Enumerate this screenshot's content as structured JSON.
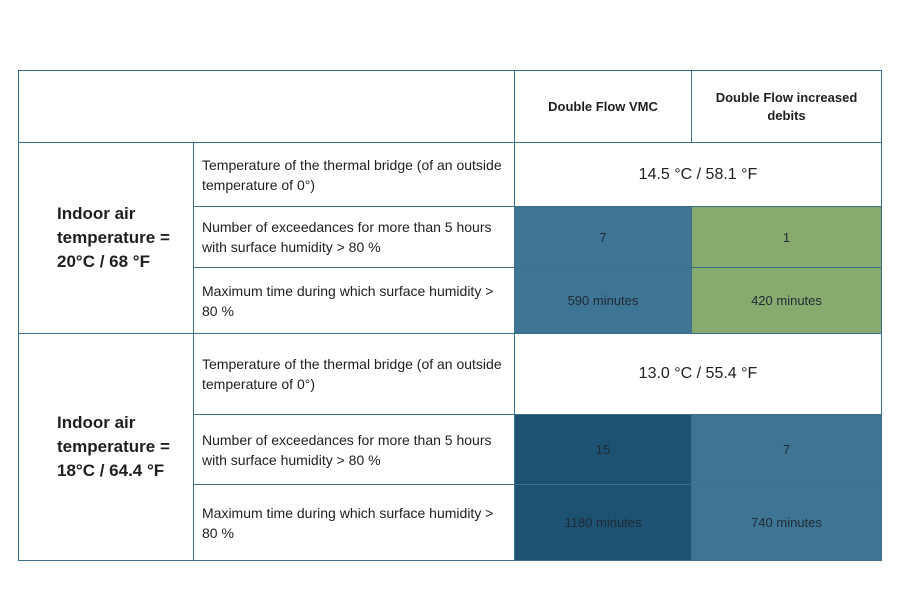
{
  "header": {
    "empty": "",
    "col1": "Double Flow VMC",
    "col2": "Double Flow increased debits"
  },
  "groups": [
    {
      "label": "Indoor air temperature = 20°C  / 68 °F",
      "rows": [
        {
          "label": "Temperature of the thermal bridge (of an outside temperature of 0°)",
          "merged_value": "14.5 °C / 58.1 °F"
        },
        {
          "label": "Number of exceedances for more than 5 hours with surface humidity > 80 %",
          "vmc": "7",
          "increased": "1",
          "vmc_color": "#3e7594",
          "increased_color": "#87ab6f"
        },
        {
          "label": "Maximum time during which surface humidity > 80 %",
          "vmc": "590 minutes",
          "increased": "420 minutes",
          "vmc_color": "#3e7594",
          "increased_color": "#87ab6f"
        }
      ]
    },
    {
      "label": "Indoor air temperature = 18°C / 64.4 °F",
      "rows": [
        {
          "label": "Temperature of the thermal bridge (of an outside temperature of 0°)",
          "merged_value": "13.0 °C / 55.4 °F"
        },
        {
          "label": "Number of exceedances for more than 5 hours with surface humidity > 80 %",
          "vmc": "15",
          "increased": "7",
          "vmc_color": "#1e5273",
          "increased_color": "#3e7594"
        },
        {
          "label": "Maximum time during which surface humidity > 80 %",
          "vmc": "1180 minutes",
          "increased": "740 minutes",
          "vmc_color": "#1e5273",
          "increased_color": "#3e7594"
        }
      ]
    }
  ]
}
